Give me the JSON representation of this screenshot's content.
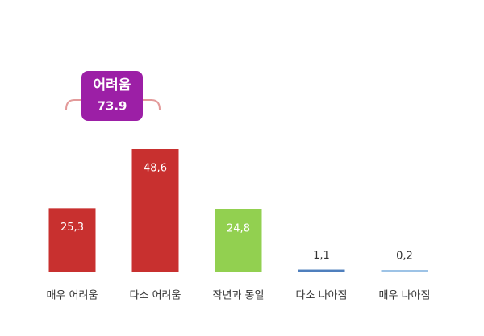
{
  "chart_data": {
    "type": "bar",
    "categories": [
      "매우 어려움",
      "다소 어려움",
      "작년과 동일",
      "다소 나아짐",
      "매우 나아짐"
    ],
    "values": [
      25.3,
      48.6,
      24.8,
      1.1,
      0.2
    ],
    "value_labels": [
      "25,3",
      "48,6",
      "24,8",
      "1,1",
      "0,2"
    ],
    "colors": [
      "#c8302f",
      "#c8302f",
      "#92d050",
      "#4f7fbd",
      "#9dc3e6"
    ],
    "annotation": {
      "label": "어려움",
      "value": 73.9
    }
  }
}
